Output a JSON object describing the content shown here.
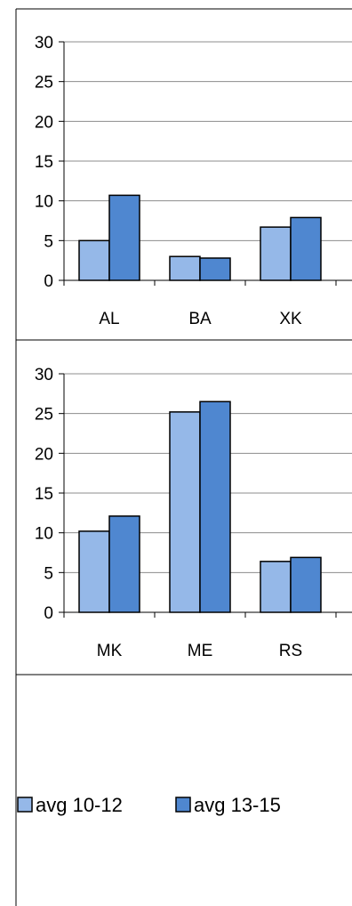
{
  "chart_data": [
    {
      "type": "bar",
      "categories": [
        "AL",
        "BA",
        "XK"
      ],
      "series": [
        {
          "name": "avg 10-12",
          "values": [
            5.0,
            3.0,
            6.7
          ]
        },
        {
          "name": "avg 13-15",
          "values": [
            10.7,
            2.8,
            7.9
          ]
        }
      ],
      "ylim": [
        0,
        30
      ],
      "yticks": [
        "0",
        "5",
        "10",
        "15",
        "20",
        "25",
        "30"
      ],
      "grid": true
    },
    {
      "type": "bar",
      "categories": [
        "MK",
        "ME",
        "RS"
      ],
      "series": [
        {
          "name": "avg 10-12",
          "values": [
            10.2,
            25.2,
            6.4
          ]
        },
        {
          "name": "avg 13-15",
          "values": [
            12.1,
            26.5,
            6.9
          ]
        }
      ],
      "ylim": [
        0,
        30
      ],
      "yticks": [
        "0",
        "5",
        "10",
        "15",
        "20",
        "25",
        "30"
      ],
      "grid": true
    }
  ],
  "legend": {
    "placement": "bottom",
    "items": [
      {
        "label": "avg 10-12",
        "color": "#95b8e8"
      },
      {
        "label": "avg 13-15",
        "color": "#4f87d0"
      }
    ]
  },
  "colors": {
    "series1": "#95b8e8",
    "series2": "#4f87d0",
    "grid": "#8c8c8c"
  }
}
